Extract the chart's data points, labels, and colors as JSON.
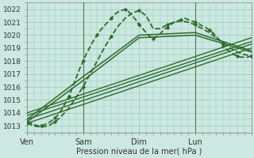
{
  "xlabel": "Pression niveau de la mer( hPa )",
  "bg_color": "#cce8e0",
  "grid_color": "#99ccbb",
  "line_color": "#2d6a2d",
  "ylim": [
    1012.5,
    1022.5
  ],
  "yticks": [
    1013,
    1014,
    1015,
    1016,
    1017,
    1018,
    1019,
    1020,
    1021,
    1022
  ],
  "day_labels": [
    "Ven",
    "Sam",
    "Dim",
    "Lun"
  ],
  "day_positions": [
    0,
    32,
    64,
    96
  ],
  "total_hours": 128,
  "vline_color": "#557755",
  "vline_positions": [
    32,
    96
  ],
  "series": [
    {
      "x": [
        0,
        2,
        4,
        6,
        8,
        10,
        12,
        14,
        16,
        18,
        20,
        22,
        24,
        26,
        28,
        30,
        32,
        34,
        36,
        38,
        40,
        42,
        44,
        46,
        48,
        50,
        52,
        54,
        56,
        58,
        60,
        62,
        64,
        66,
        68,
        70,
        72,
        74,
        76,
        78,
        80,
        82,
        84,
        86,
        88,
        90,
        92,
        94,
        96,
        98,
        100,
        102,
        104,
        106,
        108,
        110,
        112,
        114,
        116,
        118,
        120,
        122,
        124,
        126,
        128
      ],
      "y": [
        1013.3,
        1013.2,
        1013.1,
        1013.0,
        1013.0,
        1013.1,
        1013.2,
        1013.4,
        1013.6,
        1013.9,
        1014.3,
        1014.8,
        1015.3,
        1016.0,
        1016.7,
        1017.4,
        1018.0,
        1018.6,
        1019.1,
        1019.6,
        1020.0,
        1020.4,
        1020.7,
        1021.0,
        1021.3,
        1021.6,
        1021.8,
        1021.9,
        1022.0,
        1021.8,
        1021.5,
        1021.2,
        1020.8,
        1020.5,
        1020.2,
        1019.9,
        1019.7,
        1019.9,
        1020.1,
        1020.4,
        1020.6,
        1020.8,
        1021.0,
        1021.1,
        1021.2,
        1021.3,
        1021.2,
        1021.1,
        1021.0,
        1020.9,
        1020.7,
        1020.6,
        1020.4,
        1020.2,
        1019.9,
        1019.6,
        1019.2,
        1018.9,
        1018.7,
        1018.5,
        1018.4,
        1018.3,
        1018.3,
        1018.3,
        1018.4
      ],
      "style": "dashed_marker",
      "lw": 1.3
    },
    {
      "x": [
        0,
        4,
        8,
        12,
        16,
        20,
        24,
        28,
        32,
        36,
        40,
        44,
        48,
        52,
        56,
        60,
        64,
        68,
        72,
        76,
        80,
        84,
        88,
        92,
        96,
        100,
        104,
        108,
        112,
        116,
        120,
        124,
        128
      ],
      "y": [
        1013.2,
        1013.0,
        1012.9,
        1013.0,
        1013.3,
        1013.8,
        1014.4,
        1015.2,
        1016.0,
        1017.0,
        1018.0,
        1019.0,
        1019.9,
        1020.7,
        1021.3,
        1021.7,
        1021.9,
        1021.5,
        1020.5,
        1020.5,
        1020.8,
        1021.0,
        1021.1,
        1021.0,
        1020.8,
        1020.5,
        1020.2,
        1019.8,
        1019.4,
        1019.0,
        1018.7,
        1018.5,
        1018.4
      ],
      "style": "dashed_marker",
      "lw": 1.3
    },
    {
      "x": [
        0,
        128
      ],
      "y": [
        1013.2,
        1019.0
      ],
      "style": "solid",
      "lw": 1.0
    },
    {
      "x": [
        0,
        128
      ],
      "y": [
        1013.5,
        1019.3
      ],
      "style": "solid",
      "lw": 1.0
    },
    {
      "x": [
        0,
        128
      ],
      "y": [
        1013.8,
        1019.5
      ],
      "style": "solid",
      "lw": 1.0
    },
    {
      "x": [
        0,
        128
      ],
      "y": [
        1014.0,
        1019.8
      ],
      "style": "solid",
      "lw": 1.0
    },
    {
      "x": [
        0,
        32,
        64,
        96,
        128
      ],
      "y": [
        1013.3,
        1016.5,
        1019.8,
        1020.0,
        1018.7
      ],
      "style": "solid",
      "lw": 1.1
    },
    {
      "x": [
        0,
        32,
        64,
        96,
        128
      ],
      "y": [
        1013.5,
        1016.8,
        1020.0,
        1020.2,
        1018.8
      ],
      "style": "solid",
      "lw": 1.1
    }
  ]
}
